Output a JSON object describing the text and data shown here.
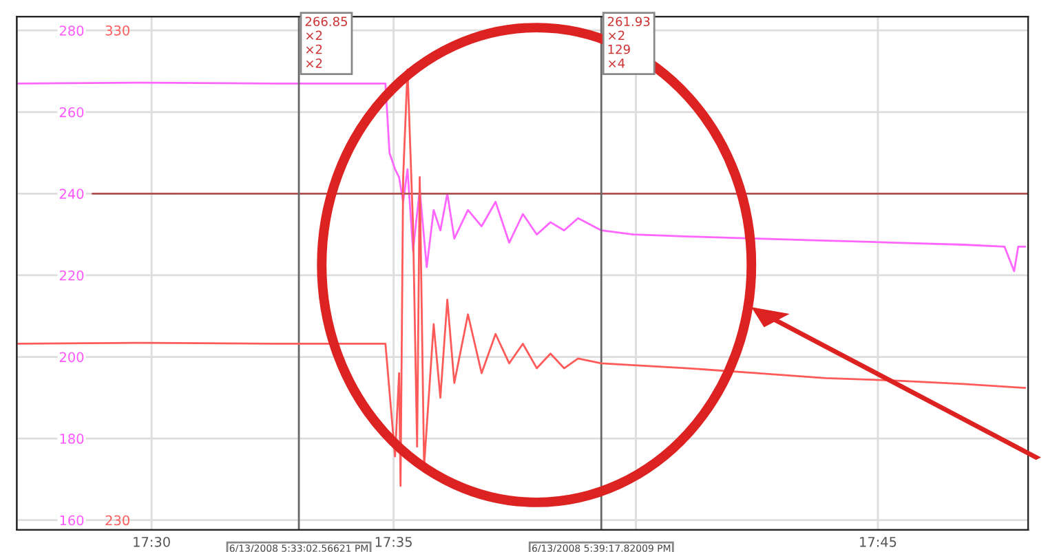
{
  "chart_data": {
    "type": "line",
    "xlim": [
      17.4536,
      17.8017
    ],
    "xticks": [
      {
        "value": 17.5,
        "label": "17:30"
      },
      {
        "value": 17.5833,
        "label": "17:35"
      },
      {
        "value": 17.6667,
        "label": null
      },
      {
        "value": 17.75,
        "label": "17:45"
      }
    ],
    "ylim": [
      157.6,
      283.4
    ],
    "yticks": [
      160,
      180,
      200,
      220,
      240,
      260,
      280
    ],
    "y2lim": [
      228,
      332.8
    ],
    "y2ticks": [
      230,
      330
    ],
    "grid": true,
    "legend": false,
    "marker": "none",
    "line_style": "solid",
    "series": [
      {
        "color": "#ff66ff",
        "x": [
          17.4536,
          17.4953,
          17.5426,
          17.5805,
          17.5819,
          17.5838,
          17.5852,
          17.5866,
          17.5881,
          17.59,
          17.5923,
          17.5947,
          17.5971,
          17.5994,
          17.6018,
          17.6042,
          17.6089,
          17.6136,
          17.6184,
          17.6231,
          17.6278,
          17.6326,
          17.6373,
          17.642,
          17.6468,
          17.6548,
          17.6657,
          17.6847,
          17.7083,
          17.732,
          17.7557,
          17.7794,
          17.7936,
          17.7969,
          17.7983,
          17.8007
        ],
        "values": [
          267,
          267.2,
          267,
          267,
          250,
          246,
          244,
          238,
          246,
          226,
          241,
          222,
          236,
          231,
          240,
          229,
          236,
          232,
          238,
          228,
          235,
          230,
          233,
          231,
          234,
          231,
          230,
          229.5,
          229,
          228.5,
          228,
          227.5,
          227,
          221,
          227,
          227
        ]
      },
      {
        "color": "#ff5a5a",
        "axis": "y2",
        "x": [
          17.4536,
          17.4953,
          17.5426,
          17.5805,
          17.5838,
          17.5852,
          17.5857,
          17.5866,
          17.5881,
          17.59,
          17.5914,
          17.5923,
          17.5938,
          17.5971,
          17.5994,
          17.6018,
          17.6042,
          17.6089,
          17.6136,
          17.6184,
          17.6231,
          17.6278,
          17.6326,
          17.6373,
          17.642,
          17.6468,
          17.6548,
          17.6847,
          17.7083,
          17.732,
          17.7557,
          17.7794,
          17.8007
        ],
        "values": [
          266,
          266.2,
          266,
          266,
          243,
          260,
          237,
          300,
          322,
          290,
          245,
          300,
          241,
          270,
          255,
          275,
          258,
          272,
          260,
          268,
          262,
          266,
          261,
          264,
          261,
          263,
          262,
          261,
          260,
          259,
          258.5,
          257.8,
          257
        ]
      }
    ],
    "ref_lines": [
      {
        "axis": "y",
        "value": 240,
        "color": "#b05050"
      },
      {
        "axis": "x",
        "value": 17.5507,
        "color": "#666666"
      },
      {
        "axis": "x",
        "value": 17.6548,
        "color": "#666666"
      }
    ],
    "annotations": [
      "6/13/2008 5:33:02.56621 PM",
      "6/13/2008 5:39:17.82009 PM",
      {
        "text": "266.85\n×2\n×2\n×2",
        "x": 17.5507,
        "y": 283.4
      },
      {
        "text": "261.93\n×2\n129\n×4",
        "x": 17.6548,
        "y": 283.4
      }
    ]
  }
}
